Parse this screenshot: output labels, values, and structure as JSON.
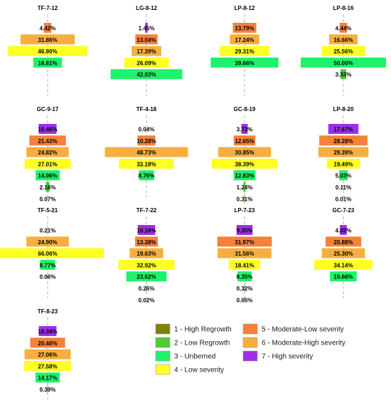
{
  "chart_data": {
    "type": "bar",
    "subtype": "centered-horizontal-funnel-small-multiples",
    "value_unit": "%",
    "categories": [
      "1 - High Regrowth",
      "2 - Low Regrowth",
      "3 - Unberned",
      "4 - Low severity",
      "5 - Moderate-Low severity",
      "6 - Moderate-High severity",
      "7 - High severity"
    ],
    "colors": {
      "1 - High Regrowth": "#808000",
      "2 - Low Regrowth": "#4dcc33",
      "3 - Unberned": "#1ef26a",
      "4 - Low severity": "#ffff22",
      "5 - Moderate-Low severity": "#f5813a",
      "6 - Moderate-High severity": "#f8ae3e",
      "7 - High severity": "#9b30e6"
    },
    "legend": {
      "placement": "bottom-right",
      "items": [
        {
          "label": "1 - High Regrowth",
          "color": "#808000"
        },
        {
          "label": "2 - Low Regrowth",
          "color": "#4dcc33"
        },
        {
          "label": "3 - Unberned",
          "color": "#1ef26a"
        },
        {
          "label": "4 - Low severity",
          "color": "#ffff22"
        },
        {
          "label": "5 - Moderate-Low severity",
          "color": "#f5813a"
        },
        {
          "label": "6 - Moderate-High severity",
          "color": "#f8ae3e"
        },
        {
          "label": "7 - High severity",
          "color": "#9b30e6"
        }
      ]
    },
    "panels": [
      {
        "title": "TF-7-12",
        "values": {
          "5": 4.42,
          "6": 31.86,
          "4": 46.9,
          "3": 16.81
        }
      },
      {
        "title": "LG-8-12",
        "values": {
          "7": 1.45,
          "5": 13.04,
          "6": 17.39,
          "4": 26.09,
          "3": 42.03
        }
      },
      {
        "title": "LP-8-12",
        "values": {
          "5": 13.79,
          "6": 17.24,
          "4": 29.31,
          "3": 39.66
        }
      },
      {
        "title": "LP-8-16",
        "values": {
          "5": 4.44,
          "6": 16.66,
          "4": 25.56,
          "3": 50.0,
          "2": 3.33
        }
      },
      {
        "title": "GC-9-17",
        "values": {
          "7": 10.46,
          "5": 21.43,
          "6": 24.82,
          "4": 27.01,
          "3": 14.06,
          "2": 2.16,
          "1": 0.07
        }
      },
      {
        "title": "TF-4-18",
        "values": {
          "7": 0.04,
          "5": 10.28,
          "6": 48.73,
          "4": 32.18,
          "3": 8.76
        }
      },
      {
        "title": "GC-8-19",
        "values": {
          "7": 3.73,
          "5": 12.65,
          "6": 30.85,
          "4": 38.39,
          "3": 12.83,
          "2": 1.24,
          "1": 0.31
        }
      },
      {
        "title": "LP-8-20",
        "values": {
          "7": 17.67,
          "5": 28.28,
          "6": 29.39,
          "4": 19.49,
          "3": 5.03,
          "2": 0.11,
          "1": 0.01
        }
      },
      {
        "title": "TF-5-21",
        "values": {
          "5": 0.21,
          "6": 24.9,
          "4": 66.06,
          "3": 8.77,
          "2": 0.06
        }
      },
      {
        "title": "TF-7-22",
        "values": {
          "7": 10.16,
          "5": 13.38,
          "6": 19.63,
          "4": 32.92,
          "3": 23.62,
          "2": 0.26,
          "1": 0.02
        }
      },
      {
        "title": "LP-7-23",
        "values": {
          "7": 9.35,
          "5": 31.97,
          "6": 31.56,
          "4": 18.41,
          "3": 8.35,
          "2": 0.32,
          "1": 0.05
        }
      },
      {
        "title": "GC-7-23",
        "values": {
          "7": 4.02,
          "5": 20.88,
          "6": 25.3,
          "4": 34.14,
          "3": 15.66
        }
      },
      {
        "title": "TF-8-23",
        "values": {
          "7": 10.34,
          "5": 20.46,
          "6": 27.06,
          "4": 27.58,
          "3": 14.17,
          "2": 0.39
        }
      }
    ],
    "xlabel": "",
    "ylabel": "",
    "grid": false
  }
}
